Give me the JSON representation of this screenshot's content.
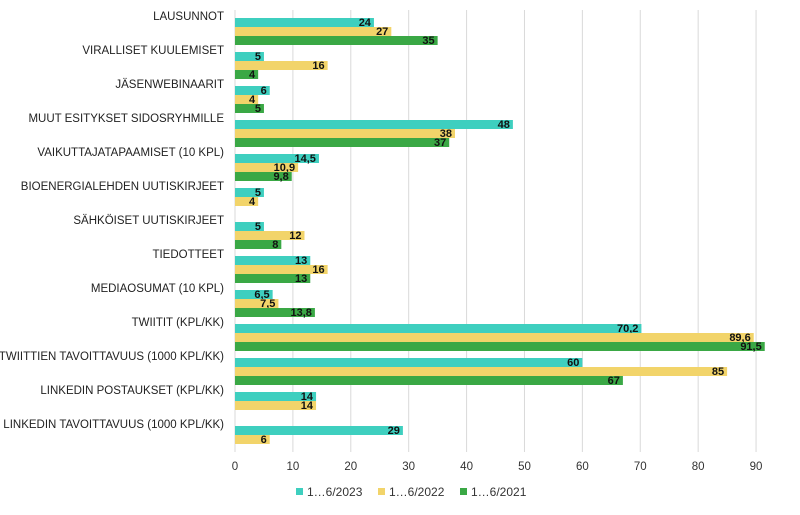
{
  "chart_data": {
    "type": "bar",
    "orientation": "horizontal",
    "categories": [
      "LAUSUNNOT",
      "VIRALLISET KUULEMISET",
      "JÄSENWEBINAARIT",
      "MUUT ESITYKSET SIDOSRYHMILLE",
      "VAIKUTTAJATAPAAMISET (10 KPL)",
      "BIOENERGIALEHDEN UUTISKIRJEET",
      "SÄHKÖISET UUTISKIRJEET",
      "TIEDOTTEET",
      "MEDIAOSUMAT (10 KPL)",
      "TWIITIT (KPL/KK)",
      "TWIITTIEN TAVOITTAVUUS (1000 KPL/KK)",
      "LINKEDIN POSTAUKSET (KPL/KK)",
      "LINKEDIN TAVOITTAVUUS (1000 KPL/KK)"
    ],
    "series": [
      {
        "name": "1…6/2023",
        "color": "#3ecfbf",
        "values": [
          24,
          5,
          6,
          48,
          14.5,
          5,
          5,
          13,
          6.5,
          70.2,
          60,
          14,
          29
        ],
        "labels": [
          "24",
          "5",
          "6",
          "48",
          "14,5",
          "5",
          "5",
          "13",
          "6,5",
          "70,2",
          "60",
          "14",
          "29"
        ]
      },
      {
        "name": "1…6/2022",
        "color": "#f2d46a",
        "values": [
          27,
          16,
          4,
          38,
          10.9,
          4,
          12,
          16,
          7.5,
          89.6,
          85,
          14,
          6
        ],
        "labels": [
          "27",
          "16",
          "4",
          "38",
          "10,9",
          "4",
          "12",
          "16",
          "7,5",
          "89,6",
          "85",
          "14",
          "6"
        ]
      },
      {
        "name": "1…6/2021",
        "color": "#3aa845",
        "values": [
          35,
          4,
          5,
          37,
          9.8,
          null,
          8,
          13,
          13.8,
          91.5,
          67,
          null,
          null
        ],
        "labels": [
          "35",
          "4",
          "5",
          "37",
          "9,8",
          "",
          "8",
          "13",
          "13,8",
          "91,5",
          "67",
          "",
          ""
        ]
      }
    ],
    "xlim": [
      0,
      95
    ],
    "xticks": [
      "0",
      "10",
      "20",
      "30",
      "40",
      "50",
      "60",
      "70",
      "80",
      "90"
    ],
    "xtick_values": [
      0,
      10,
      20,
      30,
      40,
      50,
      60,
      70,
      80,
      90
    ],
    "grid": true,
    "legend_position": "bottom"
  }
}
